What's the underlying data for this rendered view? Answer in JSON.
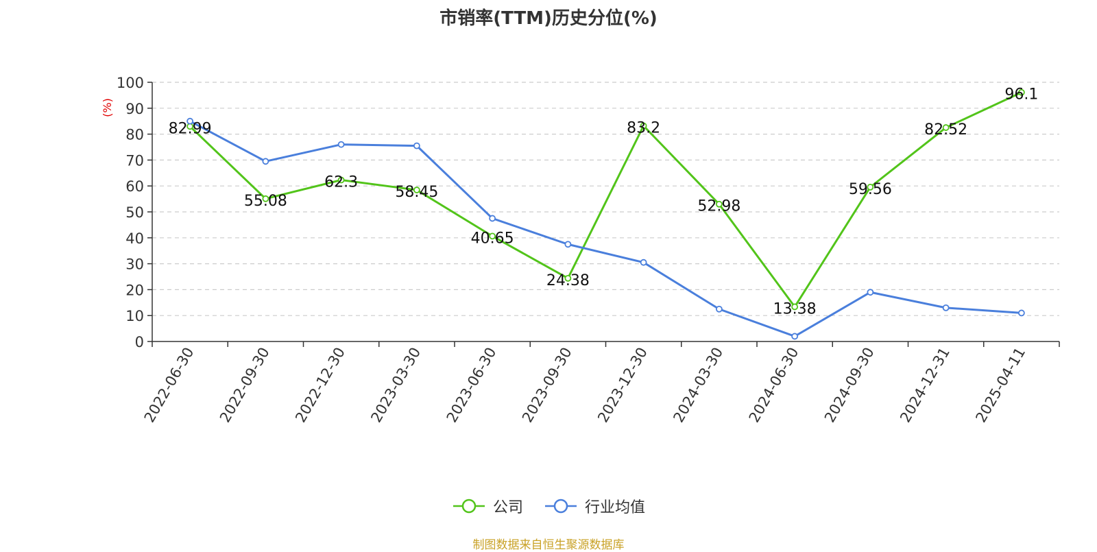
{
  "chart_data": {
    "type": "line",
    "title": "市销率(TTM)历史分位(%)",
    "ylabel": "(%)",
    "xlabel": "",
    "ylim": [
      0,
      100
    ],
    "yticks": [
      0,
      10,
      20,
      30,
      40,
      50,
      60,
      70,
      80,
      90,
      100
    ],
    "categories": [
      "2022-06-30",
      "2022-09-30",
      "2022-12-30",
      "2023-03-30",
      "2023-06-30",
      "2023-09-30",
      "2023-12-30",
      "2024-03-30",
      "2024-06-30",
      "2024-09-30",
      "2024-12-31",
      "2025-04-11"
    ],
    "grid": true,
    "legend_position": "bottom",
    "series": [
      {
        "name": "公司",
        "color": "#52c41a",
        "show_labels": true,
        "values": [
          82.99,
          55.08,
          62.3,
          58.45,
          40.65,
          24.38,
          83.2,
          52.98,
          13.38,
          59.56,
          82.52,
          96.1
        ]
      },
      {
        "name": "行业均值",
        "color": "#4a7fdc",
        "show_labels": false,
        "values": [
          85,
          69.5,
          76,
          75.5,
          47.5,
          37.5,
          30.5,
          12.5,
          2,
          19,
          13,
          11
        ]
      }
    ]
  },
  "source_note": "制图数据来自恒生聚源数据库",
  "colors": {
    "axis": "#333333",
    "grid": "#cccccc",
    "ylabel": "#e00000",
    "title": "#333333",
    "source": "#c9a227"
  }
}
